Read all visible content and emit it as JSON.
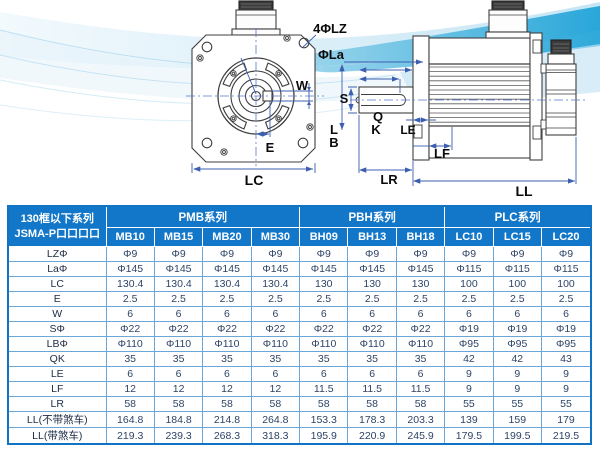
{
  "diagram": {
    "labels": {
      "lz": "4ΦLZ",
      "la": "ΦLa",
      "w": "W",
      "s": "S",
      "q": "Q",
      "k": "K",
      "le": "LE",
      "l": "L",
      "b": "B",
      "e": "E",
      "lc": "LC",
      "lf": "LF",
      "lr": "LR",
      "ll": "LL"
    }
  },
  "table": {
    "corner": {
      "line1": "130框以下系列",
      "line2": "JSMA-P口口口口"
    },
    "groups": [
      {
        "label": "PMB系列",
        "span": 4
      },
      {
        "label": "PBH系列",
        "span": 3
      },
      {
        "label": "PLC系列",
        "span": 3
      }
    ],
    "models": [
      "MB10",
      "MB15",
      "MB20",
      "MB30",
      "BH09",
      "BH13",
      "BH18",
      "LC10",
      "LC15",
      "LC20"
    ],
    "rows": [
      {
        "label": "LZΦ",
        "values": [
          "Φ9",
          "Φ9",
          "Φ9",
          "Φ9",
          "Φ9",
          "Φ9",
          "Φ9",
          "Φ9",
          "Φ9",
          "Φ9"
        ]
      },
      {
        "label": "LaΦ",
        "values": [
          "Φ145",
          "Φ145",
          "Φ145",
          "Φ145",
          "Φ145",
          "Φ145",
          "Φ145",
          "Φ115",
          "Φ115",
          "Φ115"
        ]
      },
      {
        "label": "LC",
        "values": [
          "130.4",
          "130.4",
          "130.4",
          "130.4",
          "130",
          "130",
          "130",
          "100",
          "100",
          "100"
        ]
      },
      {
        "label": "E",
        "values": [
          "2.5",
          "2.5",
          "2.5",
          "2.5",
          "2.5",
          "2.5",
          "2.5",
          "2.5",
          "2.5",
          "2.5"
        ]
      },
      {
        "label": "W",
        "values": [
          "6",
          "6",
          "6",
          "6",
          "6",
          "6",
          "6",
          "6",
          "6",
          "6"
        ]
      },
      {
        "label": "SΦ",
        "values": [
          "Φ22",
          "Φ22",
          "Φ22",
          "Φ22",
          "Φ22",
          "Φ22",
          "Φ22",
          "Φ19",
          "Φ19",
          "Φ19"
        ]
      },
      {
        "label": "LBΦ",
        "values": [
          "Φ110",
          "Φ110",
          "Φ110",
          "Φ110",
          "Φ110",
          "Φ110",
          "Φ110",
          "Φ95",
          "Φ95",
          "Φ95"
        ]
      },
      {
        "label": "QK",
        "values": [
          "35",
          "35",
          "35",
          "35",
          "35",
          "35",
          "35",
          "42",
          "42",
          "43"
        ]
      },
      {
        "label": "LE",
        "values": [
          "6",
          "6",
          "6",
          "6",
          "6",
          "6",
          "6",
          "9",
          "9",
          "9"
        ]
      },
      {
        "label": "LF",
        "values": [
          "12",
          "12",
          "12",
          "12",
          "11.5",
          "11.5",
          "11.5",
          "9",
          "9",
          "9"
        ]
      },
      {
        "label": "LR",
        "values": [
          "58",
          "58",
          "58",
          "58",
          "58",
          "58",
          "58",
          "55",
          "55",
          "55"
        ]
      },
      {
        "label": "LL(不带煞车)",
        "values": [
          "164.8",
          "184.8",
          "214.8",
          "264.8",
          "153.3",
          "178.3",
          "203.3",
          "139",
          "159",
          "179"
        ]
      },
      {
        "label": "LL(带煞车)",
        "values": [
          "219.3",
          "239.3",
          "268.3",
          "318.3",
          "195.9",
          "220.9",
          "245.9",
          "179.5",
          "199.5",
          "219.5"
        ]
      }
    ],
    "colors": {
      "header_bg": "#1377c9",
      "outer_border": "#1173c4",
      "grid": "#6aa6d8",
      "body_text": "#2e4466"
    }
  }
}
